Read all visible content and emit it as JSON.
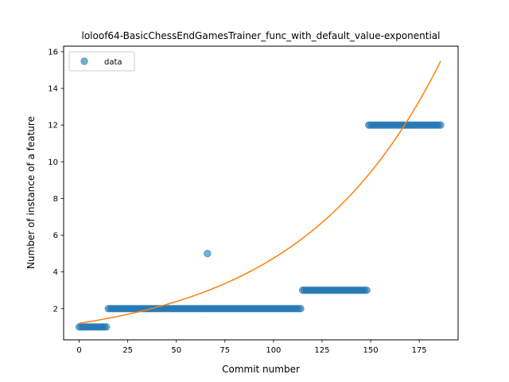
{
  "chart_data": {
    "type": "scatter",
    "title": "loloof64-BasicChessEndGamesTrainer_func_with_default_value-exponential",
    "xlabel": "Commit number",
    "ylabel": "Number of instance of a feature",
    "xlim": [
      -8,
      195
    ],
    "ylim": [
      0.3,
      16.3
    ],
    "xticks": [
      0,
      25,
      50,
      75,
      100,
      125,
      150,
      175
    ],
    "yticks": [
      2,
      4,
      6,
      8,
      10,
      12,
      14,
      16
    ],
    "grid": false,
    "legend": {
      "placement": "top-left",
      "entries": [
        "data"
      ]
    },
    "colors": {
      "data": "#1f77b4",
      "fit": "#ff7f0e"
    },
    "series": [
      {
        "name": "data",
        "kind": "scatter",
        "segments": [
          {
            "x_start": 0,
            "x_end": 14,
            "y": 1
          },
          {
            "x_start": 15,
            "x_end": 114,
            "y": 2
          },
          {
            "x_start": 115,
            "x_end": 148,
            "y": 3
          },
          {
            "x_start": 149,
            "x_end": 186,
            "y": 12
          }
        ],
        "outliers": [
          {
            "x": 66,
            "y": 5
          }
        ]
      },
      {
        "kind": "line",
        "model": "exponential",
        "a": 1.2,
        "b": 0.01375,
        "x_range": [
          0,
          186
        ]
      }
    ]
  }
}
